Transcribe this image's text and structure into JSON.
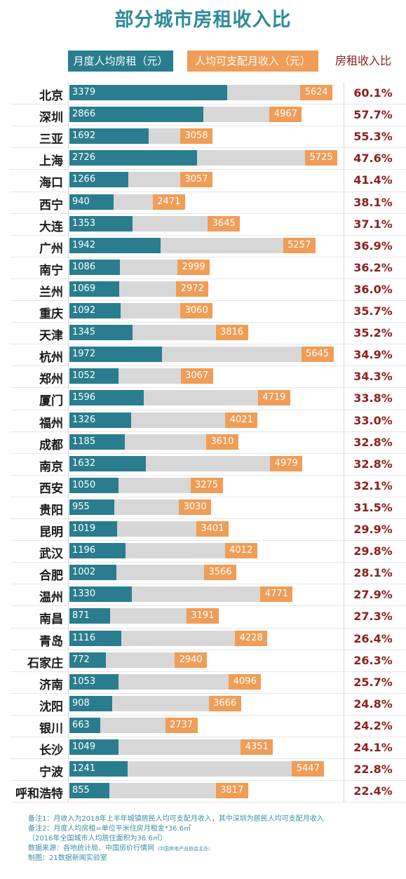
{
  "title": "部分城市房租收入比",
  "legend": {
    "rent": "月度人均房租（元）",
    "income": "人均可支配月收入（元）",
    "ratio": "房租收入比"
  },
  "colors": {
    "rent": "#2a7d8e",
    "income_bg": "#d7d7d7",
    "income_label": "#ef9d57",
    "ratio_text": "#8b2020",
    "title": "#2e8b9a"
  },
  "chart_data": {
    "type": "bar",
    "categories": [
      "北京",
      "深圳",
      "三亚",
      "上海",
      "海口",
      "西宁",
      "大连",
      "广州",
      "南宁",
      "兰州",
      "重庆",
      "天津",
      "杭州",
      "郑州",
      "厦门",
      "福州",
      "成都",
      "南京",
      "西安",
      "贵阳",
      "昆明",
      "武汉",
      "合肥",
      "温州",
      "南昌",
      "青岛",
      "石家庄",
      "济南",
      "沈阳",
      "银川",
      "长沙",
      "宁波",
      "呼和浩特"
    ],
    "series": [
      {
        "name": "月度人均房租（元）",
        "values": [
          3379,
          2866,
          1692,
          2726,
          1266,
          940,
          1353,
          1942,
          1086,
          1069,
          1092,
          1345,
          1972,
          1052,
          1596,
          1326,
          1185,
          1632,
          1050,
          955,
          1019,
          1196,
          1002,
          1330,
          871,
          1116,
          772,
          1053,
          908,
          663,
          1049,
          1241,
          855
        ]
      },
      {
        "name": "人均可支配月收入（元）",
        "values": [
          5624,
          4967,
          3058,
          5725,
          3057,
          2471,
          3645,
          5257,
          2999,
          2972,
          3060,
          3816,
          5645,
          3067,
          4719,
          4021,
          3610,
          4979,
          3275,
          3030,
          3401,
          4012,
          3566,
          4771,
          3191,
          4228,
          2940,
          4096,
          3666,
          2737,
          4351,
          5447,
          3817
        ]
      },
      {
        "name": "房租收入比",
        "values": [
          "60.1%",
          "57.7%",
          "55.3%",
          "47.6%",
          "41.4%",
          "38.1%",
          "37.1%",
          "36.9%",
          "36.2%",
          "36.0%",
          "35.7%",
          "35.2%",
          "34.9%",
          "34.3%",
          "33.8%",
          "33.0%",
          "32.8%",
          "32.8%",
          "32.1%",
          "31.5%",
          "29.9%",
          "29.8%",
          "28.1%",
          "27.9%",
          "27.3%",
          "26.4%",
          "26.3%",
          "25.7%",
          "24.8%",
          "24.2%",
          "24.1%",
          "22.8%",
          "22.4%"
        ]
      }
    ],
    "xlim": [
      0,
      5725
    ]
  },
  "notes": {
    "line1": "备注1：月收入为2018年上半年城镇居民人均可支配月收入，其中深圳为居民人均可支配月收入",
    "line2": "备注2：月度人均房租=单位平米住房月租金*36.6㎡",
    "line3": "（2016年全国城市人均居住面积为36.6㎡）",
    "line4": "数据来源：各地统计局、中国房价行情网",
    "line4_small": "（中国房地产业协会主办）",
    "line5": "制图：21数据新闻实验室"
  }
}
